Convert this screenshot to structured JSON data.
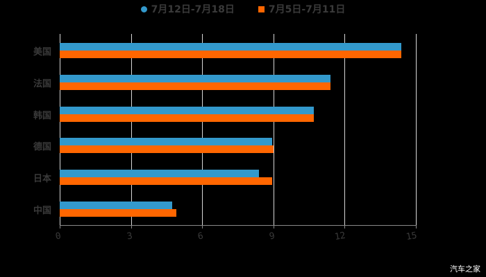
{
  "chart_data": {
    "type": "bar",
    "orientation": "horizontal",
    "title": "",
    "xlabel": "",
    "ylabel": "",
    "categories": [
      "美国",
      "法国",
      "韩国",
      "德国",
      "日本",
      "中国"
    ],
    "series": [
      {
        "name": "7月12日-7月18日",
        "color": "#3399cc",
        "values": [
          14.4,
          11.4,
          10.7,
          8.95,
          8.4,
          4.75
        ]
      },
      {
        "name": "7月5日-7月11日",
        "color": "#ff6600",
        "values": [
          14.4,
          11.4,
          10.7,
          9.0,
          8.95,
          4.9
        ]
      }
    ],
    "xlim": [
      0,
      15
    ],
    "xticks": [
      "0",
      "3",
      "6",
      "9",
      "12",
      "15"
    ],
    "grid": true,
    "legend_position": "top"
  },
  "legend": {
    "series1": "7月12日-7月18日",
    "series2": "7月5日-7月11日"
  },
  "watermark": "汽车之家"
}
